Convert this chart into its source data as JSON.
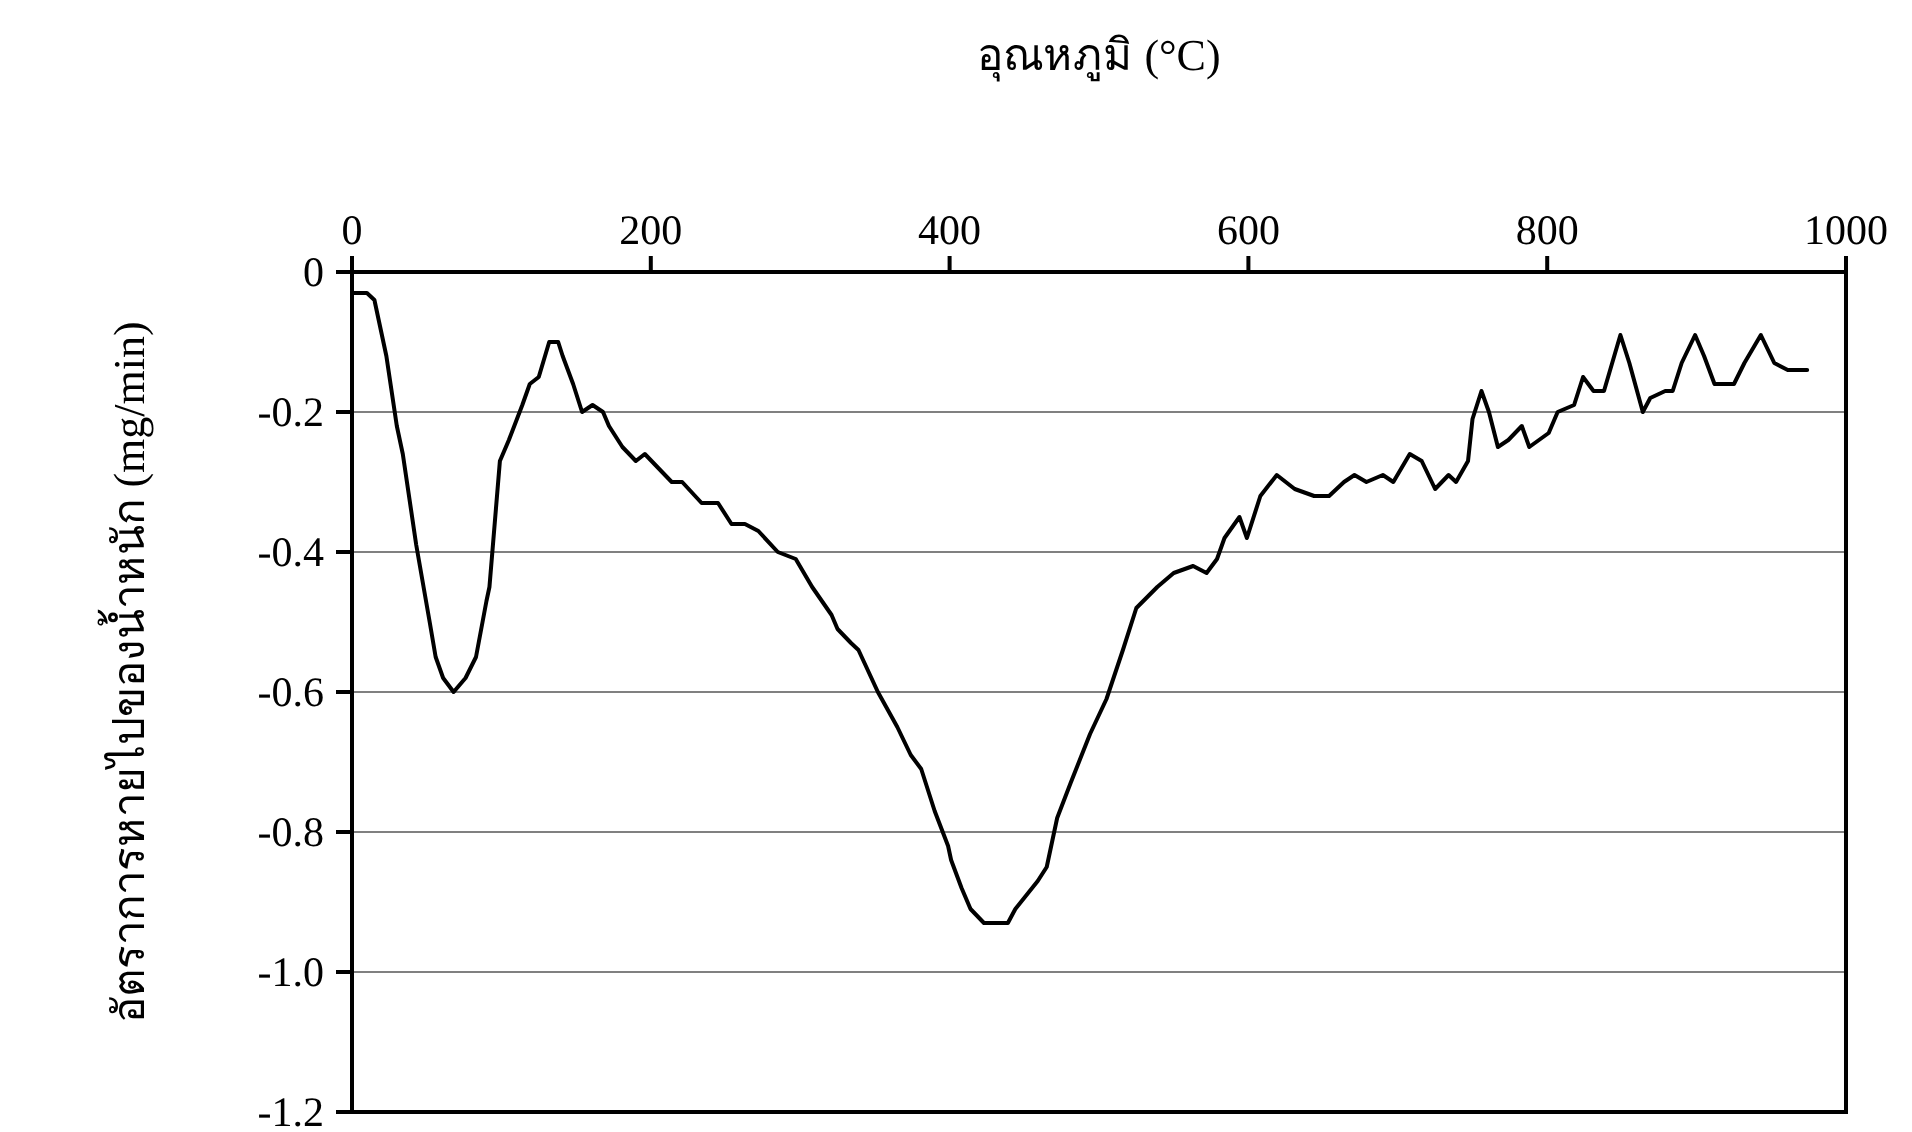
{
  "chart_data": {
    "type": "line",
    "xlabel": "อุณหภูมิ (°C)",
    "ylabel": "อัตราการหายไปของน้ำหนัก (mg/min)",
    "x": [
      1,
      10,
      15,
      23,
      30,
      34,
      43,
      52,
      56,
      61,
      68,
      76,
      83,
      90,
      92,
      99,
      105,
      114,
      119,
      125,
      132,
      138,
      141,
      148,
      154,
      161,
      168,
      172,
      181,
      190,
      196,
      205,
      214,
      221,
      234,
      245,
      254,
      263,
      272,
      285,
      297,
      308,
      321,
      325,
      334,
      339,
      352,
      365,
      374,
      381,
      390,
      399,
      401,
      408,
      414,
      423,
      439,
      444,
      459,
      465,
      472,
      481,
      494,
      505,
      516,
      525,
      539,
      550,
      563,
      572,
      579,
      584,
      594,
      599,
      608,
      619,
      631,
      644,
      654,
      664,
      671,
      679,
      690,
      697,
      708,
      716,
      725,
      734,
      739,
      747,
      750,
      756,
      761,
      767,
      774,
      783,
      788,
      801,
      807,
      818,
      824,
      831,
      838,
      849,
      855,
      864,
      869,
      879,
      884,
      890,
      899,
      905,
      912,
      925,
      932,
      943,
      952,
      961,
      974
    ],
    "series": [
      {
        "color": "#000000",
        "values": [
          -0.03,
          -0.03,
          -0.04,
          -0.12,
          -0.22,
          -0.26,
          -0.39,
          -0.5,
          -0.55,
          -0.58,
          -0.6,
          -0.58,
          -0.55,
          -0.47,
          -0.45,
          -0.27,
          -0.24,
          -0.19,
          -0.16,
          -0.15,
          -0.1,
          -0.1,
          -0.12,
          -0.16,
          -0.2,
          -0.19,
          -0.2,
          -0.22,
          -0.25,
          -0.27,
          -0.26,
          -0.28,
          -0.3,
          -0.3,
          -0.33,
          -0.33,
          -0.36,
          -0.36,
          -0.37,
          -0.4,
          -0.41,
          -0.45,
          -0.49,
          -0.51,
          -0.53,
          -0.54,
          -0.6,
          -0.65,
          -0.69,
          -0.71,
          -0.77,
          -0.82,
          -0.84,
          -0.88,
          -0.91,
          -0.93,
          -0.93,
          -0.91,
          -0.87,
          -0.85,
          -0.78,
          -0.73,
          -0.66,
          -0.61,
          -0.54,
          -0.48,
          -0.45,
          -0.43,
          -0.42,
          -0.43,
          -0.41,
          -0.38,
          -0.35,
          -0.38,
          -0.32,
          -0.29,
          -0.31,
          -0.32,
          -0.32,
          -0.3,
          -0.29,
          -0.3,
          -0.29,
          -0.3,
          -0.26,
          -0.27,
          -0.31,
          -0.29,
          -0.3,
          -0.27,
          -0.21,
          -0.17,
          -0.2,
          -0.25,
          -0.24,
          -0.22,
          -0.25,
          -0.23,
          -0.2,
          -0.19,
          -0.15,
          -0.17,
          -0.17,
          -0.09,
          -0.13,
          -0.2,
          -0.18,
          -0.17,
          -0.17,
          -0.13,
          -0.09,
          -0.12,
          -0.16,
          -0.16,
          -0.13,
          -0.09,
          -0.13,
          -0.14,
          -0.14
        ]
      }
    ],
    "xlim": [
      0,
      1000
    ],
    "xticks": [
      0,
      200,
      400,
      600,
      800,
      1000
    ],
    "ylim": [
      -1.2,
      0
    ],
    "yticks": [
      0,
      -0.2,
      -0.4,
      -0.6,
      -0.8,
      {
        "value": -1,
        "label": "-1.0"
      },
      -1.2
    ],
    "grid": "y"
  }
}
